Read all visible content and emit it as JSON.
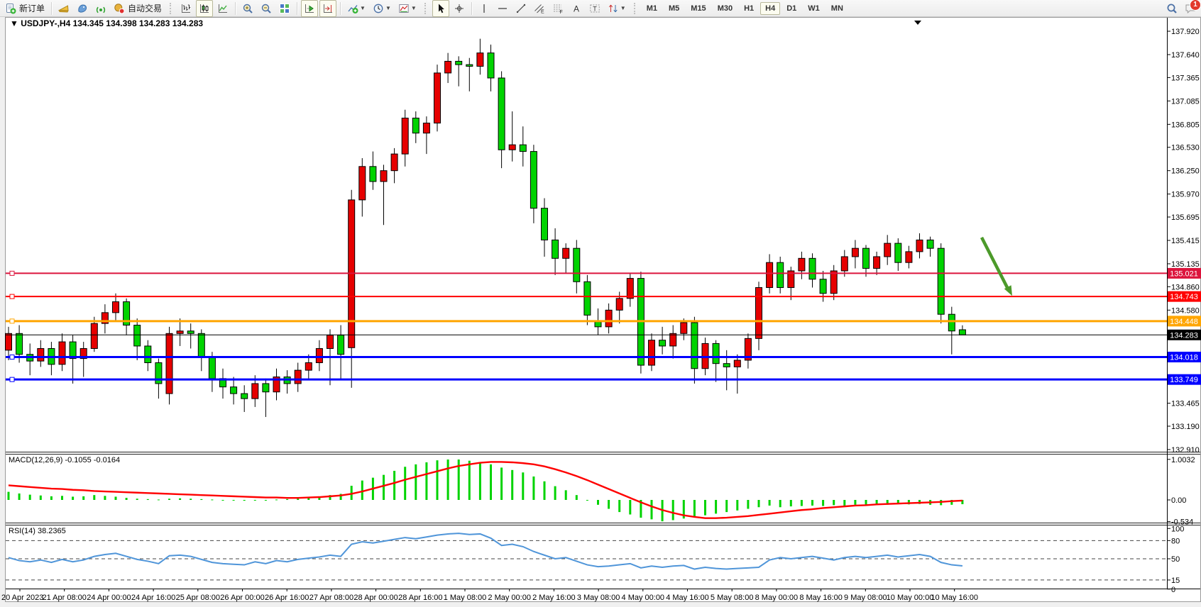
{
  "toolbar": {
    "new_order_label": "新订单",
    "autotrade_label": "自动交易",
    "groups": [
      {
        "lead": "none",
        "items": [
          {
            "name": "new-order-button",
            "icon": "new-order",
            "label_key": "new_order_label"
          }
        ]
      },
      {
        "lead": "sep",
        "items": [
          {
            "name": "market-watch-button",
            "icon": "gold-wedge"
          },
          {
            "name": "data-window-button",
            "icon": "blue-bird"
          },
          {
            "name": "ea-signal-button",
            "icon": "signal"
          },
          {
            "name": "autotrading-button",
            "icon": "autotrade",
            "label_key": "autotrade_label"
          }
        ]
      },
      {
        "lead": "grip",
        "items": [
          {
            "name": "bar-chart-button",
            "icon": "bar-chart"
          },
          {
            "name": "candlestick-chart-button",
            "icon": "candlestick",
            "active": true
          },
          {
            "name": "line-chart-button",
            "icon": "line-chart"
          }
        ]
      },
      {
        "lead": "sep",
        "items": [
          {
            "name": "zoom-in-button",
            "icon": "zoom-in"
          },
          {
            "name": "zoom-out-button",
            "icon": "zoom-out"
          },
          {
            "name": "tile-windows-button",
            "icon": "tile-windows"
          }
        ]
      },
      {
        "lead": "sep",
        "items": [
          {
            "name": "auto-scroll-button",
            "icon": "auto-scroll",
            "active": true
          },
          {
            "name": "chart-shift-button",
            "icon": "chart-shift",
            "active": true
          }
        ]
      },
      {
        "lead": "sep",
        "items": [
          {
            "name": "indicators-button",
            "icon": "indicators",
            "dropdown": true
          },
          {
            "name": "periods-button",
            "icon": "clock",
            "dropdown": true
          },
          {
            "name": "templates-button",
            "icon": "template",
            "dropdown": true
          }
        ]
      },
      {
        "lead": "grip",
        "items": [
          {
            "name": "cursor-button",
            "icon": "cursor",
            "active": true
          },
          {
            "name": "crosshair-button",
            "icon": "crosshair"
          }
        ]
      },
      {
        "lead": "sep",
        "items": [
          {
            "name": "vertical-line-button",
            "icon": "vline"
          },
          {
            "name": "horizontal-line-button",
            "icon": "hline"
          },
          {
            "name": "trendline-button",
            "icon": "trendline"
          },
          {
            "name": "equidistant-channel-button",
            "icon": "channel"
          },
          {
            "name": "fibonacci-button",
            "icon": "fibonacci"
          },
          {
            "name": "text-button",
            "icon": "text-a"
          },
          {
            "name": "text-label-button",
            "icon": "text-label"
          },
          {
            "name": "arrows-button",
            "icon": "arrows",
            "dropdown": true
          }
        ]
      }
    ],
    "timeframes": [
      "M1",
      "M5",
      "M15",
      "M30",
      "H1",
      "H4",
      "D1",
      "W1",
      "MN"
    ],
    "active_timeframe": "H4",
    "notification_count": "1"
  },
  "chart": {
    "symbol_period": "USDJPY-,H4",
    "ohlc_text": "134.345 134.398 134.283 134.283",
    "macd_label": "MACD(12,26,9)",
    "macd_values_text": "-0.1055 -0.0164",
    "rsi_label": "RSI(14)",
    "rsi_value_text": "38.2365",
    "macd_axis": [
      "1.0032",
      "0.00",
      "-0.534"
    ],
    "rsi_axis": [
      "100",
      "80",
      "50",
      "15",
      "0"
    ]
  },
  "chart_data": [
    {
      "type": "candlestick",
      "title": "USDJPY-,H4",
      "timeframe": "H4",
      "ylim": [
        132.91,
        137.92
      ],
      "up_color": "#e60000",
      "down_color": "#00d300",
      "y_ticks": [
        "137.920",
        "137.640",
        "137.365",
        "137.085",
        "136.805",
        "136.530",
        "136.250",
        "135.970",
        "135.695",
        "135.415",
        "135.135",
        "134.860",
        "134.580",
        "133.465",
        "133.190",
        "132.910"
      ],
      "x_labels": [
        "20 Apr 2023",
        "21 Apr 08:00",
        "24 Apr 00:00",
        "24 Apr 16:00",
        "25 Apr 08:00",
        "26 Apr 00:00",
        "26 Apr 16:00",
        "27 Apr 08:00",
        "28 Apr 00:00",
        "28 Apr 16:00",
        "1 May 08:00",
        "2 May 00:00",
        "2 May 16:00",
        "3 May 08:00",
        "4 May 00:00",
        "4 May 16:00",
        "5 May 08:00",
        "8 May 00:00",
        "8 May 16:00",
        "9 May 08:00",
        "10 May 00:00",
        "10 May 16:00"
      ],
      "hlines": [
        {
          "price": 135.021,
          "label": "135.021",
          "color": "#dc143c",
          "lw": 2,
          "text_color": "#ffffff"
        },
        {
          "price": 134.743,
          "label": "134.743",
          "color": "#ff0000",
          "lw": 2,
          "text_color": "#ffffff"
        },
        {
          "price": 134.448,
          "label": "134.448",
          "color": "#ffa500",
          "lw": 3,
          "text_color": "#ffffff"
        },
        {
          "price": 134.018,
          "label": "134.018",
          "color": "#0000ff",
          "lw": 3,
          "text_color": "#ffffff"
        },
        {
          "price": 133.749,
          "label": "133.749",
          "color": "#0000ff",
          "lw": 3,
          "text_color": "#ffffff"
        }
      ],
      "current_price": {
        "price": 134.283,
        "label": "134.283",
        "color": "#000000",
        "text_color": "#ffffff"
      },
      "annotations": [
        {
          "type": "arrow",
          "name": "sell-signal-arrow",
          "color": "#4c9a2a",
          "from_price": 135.45,
          "to_price": 134.75
        }
      ],
      "candles": [
        [
          134.1,
          134.38,
          133.98,
          134.3
        ],
        [
          134.3,
          134.4,
          133.95,
          134.05
        ],
        [
          134.05,
          134.18,
          133.8,
          133.97
        ],
        [
          133.97,
          134.22,
          133.9,
          134.12
        ],
        [
          134.12,
          134.2,
          133.8,
          133.93
        ],
        [
          133.93,
          134.3,
          133.85,
          134.2
        ],
        [
          134.2,
          134.28,
          133.7,
          134.0
        ],
        [
          134.0,
          134.2,
          133.78,
          134.12
        ],
        [
          134.12,
          134.5,
          134.08,
          134.42
        ],
        [
          134.42,
          134.65,
          134.3,
          134.55
        ],
        [
          134.55,
          134.78,
          134.45,
          134.68
        ],
        [
          134.68,
          134.72,
          134.28,
          134.4
        ],
        [
          134.4,
          134.48,
          133.98,
          134.15
        ],
        [
          134.15,
          134.22,
          133.85,
          133.95
        ],
        [
          133.95,
          134.0,
          133.52,
          133.7
        ],
        [
          133.58,
          134.38,
          133.45,
          134.3
        ],
        [
          134.3,
          134.48,
          134.15,
          134.33
        ],
        [
          134.33,
          134.42,
          134.12,
          134.3
        ],
        [
          134.3,
          134.35,
          133.85,
          134.02
        ],
        [
          134.02,
          134.08,
          133.6,
          133.76
        ],
        [
          133.76,
          133.88,
          133.52,
          133.66
        ],
        [
          133.66,
          133.78,
          133.45,
          133.58
        ],
        [
          133.58,
          133.68,
          133.36,
          133.52
        ],
        [
          133.52,
          133.8,
          133.42,
          133.7
        ],
        [
          133.7,
          133.76,
          133.3,
          133.6
        ],
        [
          133.6,
          133.88,
          133.5,
          133.78
        ],
        [
          133.78,
          133.86,
          133.58,
          133.7
        ],
        [
          133.7,
          133.95,
          133.6,
          133.86
        ],
        [
          133.86,
          134.05,
          133.75,
          133.95
        ],
        [
          133.95,
          134.22,
          133.85,
          134.12
        ],
        [
          134.12,
          134.35,
          133.68,
          134.28
        ],
        [
          134.28,
          134.4,
          133.75,
          134.05
        ],
        [
          134.13,
          136.02,
          133.65,
          135.9
        ],
        [
          135.9,
          136.4,
          135.7,
          136.3
        ],
        [
          136.3,
          136.48,
          136.02,
          136.12
        ],
        [
          136.12,
          136.32,
          135.6,
          136.25
        ],
        [
          136.25,
          136.52,
          136.1,
          136.45
        ],
        [
          136.45,
          136.98,
          136.3,
          136.88
        ],
        [
          136.88,
          136.96,
          136.58,
          136.7
        ],
        [
          136.7,
          136.9,
          136.45,
          136.82
        ],
        [
          136.82,
          137.52,
          136.72,
          137.42
        ],
        [
          137.42,
          137.66,
          137.3,
          137.56
        ],
        [
          137.56,
          137.62,
          137.26,
          137.52
        ],
        [
          137.52,
          137.6,
          137.2,
          137.5
        ],
        [
          137.5,
          137.83,
          137.4,
          137.66
        ],
        [
          137.66,
          137.76,
          137.2,
          137.36
        ],
        [
          137.36,
          137.44,
          136.28,
          136.5
        ],
        [
          136.5,
          136.96,
          136.36,
          136.56
        ],
        [
          136.56,
          136.78,
          136.3,
          136.48
        ],
        [
          136.48,
          136.56,
          135.62,
          135.8
        ],
        [
          135.8,
          135.92,
          135.22,
          135.42
        ],
        [
          135.42,
          135.56,
          135.0,
          135.2
        ],
        [
          135.2,
          135.38,
          135.02,
          135.32
        ],
        [
          135.32,
          135.42,
          134.78,
          134.92
        ],
        [
          134.92,
          135.0,
          134.4,
          134.52
        ],
        [
          134.44,
          134.6,
          134.28,
          134.38
        ],
        [
          134.38,
          134.66,
          134.3,
          134.58
        ],
        [
          134.58,
          134.8,
          134.42,
          134.72
        ],
        [
          134.72,
          135.02,
          134.62,
          134.96
        ],
        [
          134.96,
          135.04,
          133.82,
          133.92
        ],
        [
          133.92,
          134.3,
          133.85,
          134.22
        ],
        [
          134.22,
          134.38,
          134.05,
          134.15
        ],
        [
          134.15,
          134.4,
          134.0,
          134.3
        ],
        [
          134.3,
          134.48,
          134.22,
          134.43
        ],
        [
          134.43,
          134.5,
          133.7,
          133.88
        ],
        [
          133.88,
          134.25,
          133.8,
          134.18
        ],
        [
          134.18,
          134.22,
          133.72,
          133.94
        ],
        [
          133.94,
          134.1,
          133.62,
          133.9
        ],
        [
          133.9,
          134.05,
          133.58,
          133.98
        ],
        [
          133.98,
          134.3,
          133.88,
          134.24
        ],
        [
          134.24,
          134.92,
          134.1,
          134.85
        ],
        [
          134.85,
          135.25,
          134.78,
          135.15
        ],
        [
          135.15,
          135.22,
          134.78,
          134.85
        ],
        [
          134.85,
          135.1,
          134.7,
          135.05
        ],
        [
          135.05,
          135.28,
          134.95,
          135.2
        ],
        [
          135.2,
          135.26,
          134.85,
          134.95
        ],
        [
          134.95,
          135.05,
          134.68,
          134.78
        ],
        [
          134.78,
          135.12,
          134.7,
          135.05
        ],
        [
          135.05,
          135.3,
          134.98,
          135.22
        ],
        [
          135.22,
          135.42,
          135.08,
          135.32
        ],
        [
          135.32,
          135.36,
          134.98,
          135.08
        ],
        [
          135.08,
          135.28,
          135.0,
          135.22
        ],
        [
          135.22,
          135.48,
          135.12,
          135.38
        ],
        [
          135.38,
          135.44,
          135.05,
          135.15
        ],
        [
          135.15,
          135.35,
          135.08,
          135.28
        ],
        [
          135.28,
          135.5,
          135.2,
          135.42
        ],
        [
          135.42,
          135.46,
          135.22,
          135.32
        ],
        [
          135.32,
          135.38,
          134.42,
          134.53
        ],
        [
          134.53,
          134.62,
          134.05,
          134.33
        ],
        [
          134.345,
          134.398,
          134.283,
          134.283
        ]
      ]
    },
    {
      "type": "bar",
      "name": "MACD(12,26,9) histogram",
      "color": "#00d300",
      "ylim": [
        -0.534,
        1.0032
      ],
      "values": [
        0.2,
        0.16,
        0.13,
        0.11,
        0.09,
        0.1,
        0.08,
        0.09,
        0.12,
        0.1,
        0.08,
        0.05,
        0.03,
        0.02,
        0.01,
        0.03,
        0.04,
        0.03,
        0.02,
        0.01,
        0.0,
        -0.01,
        -0.02,
        -0.01,
        0.0,
        0.01,
        0.02,
        0.03,
        0.05,
        0.08,
        0.12,
        0.15,
        0.35,
        0.48,
        0.55,
        0.62,
        0.72,
        0.82,
        0.88,
        0.93,
        0.98,
        1.0,
        1.0,
        0.97,
        0.92,
        0.88,
        0.8,
        0.74,
        0.68,
        0.58,
        0.46,
        0.34,
        0.24,
        0.12,
        0.0,
        -0.12,
        -0.22,
        -0.3,
        -0.36,
        -0.44,
        -0.48,
        -0.53,
        -0.5,
        -0.46,
        -0.42,
        -0.38,
        -0.34,
        -0.3,
        -0.26,
        -0.22,
        -0.18,
        -0.14,
        -0.18,
        -0.16,
        -0.15,
        -0.14,
        -0.15,
        -0.13,
        -0.14,
        -0.12,
        -0.13,
        -0.11,
        -0.12,
        -0.1,
        -0.11,
        -0.1,
        -0.12,
        -0.13,
        -0.12,
        -0.1055
      ]
    },
    {
      "type": "line",
      "name": "MACD signal",
      "color": "#ff0000",
      "values": [
        0.36,
        0.34,
        0.32,
        0.3,
        0.28,
        0.27,
        0.25,
        0.24,
        0.22,
        0.21,
        0.2,
        0.19,
        0.18,
        0.17,
        0.16,
        0.15,
        0.14,
        0.13,
        0.12,
        0.11,
        0.1,
        0.09,
        0.08,
        0.07,
        0.06,
        0.06,
        0.05,
        0.05,
        0.06,
        0.07,
        0.09,
        0.11,
        0.15,
        0.21,
        0.28,
        0.35,
        0.42,
        0.5,
        0.57,
        0.64,
        0.71,
        0.78,
        0.84,
        0.88,
        0.92,
        0.94,
        0.94,
        0.93,
        0.91,
        0.88,
        0.83,
        0.76,
        0.68,
        0.59,
        0.49,
        0.38,
        0.27,
        0.16,
        0.05,
        -0.06,
        -0.16,
        -0.25,
        -0.32,
        -0.38,
        -0.42,
        -0.45,
        -0.45,
        -0.44,
        -0.42,
        -0.4,
        -0.37,
        -0.34,
        -0.31,
        -0.28,
        -0.25,
        -0.23,
        -0.2,
        -0.18,
        -0.16,
        -0.14,
        -0.13,
        -0.11,
        -0.1,
        -0.09,
        -0.08,
        -0.07,
        -0.06,
        -0.05,
        -0.03,
        -0.0164
      ]
    },
    {
      "type": "line",
      "name": "RSI(14)",
      "color": "#4f95d9",
      "ylim": [
        0,
        100
      ],
      "levels": [
        80,
        50,
        15
      ],
      "values": [
        52,
        47,
        45,
        48,
        44,
        49,
        45,
        48,
        54,
        57,
        59,
        54,
        49,
        46,
        42,
        55,
        56,
        54,
        49,
        44,
        42,
        41,
        40,
        45,
        42,
        47,
        45,
        49,
        51,
        53,
        56,
        54,
        74,
        78,
        76,
        79,
        82,
        85,
        83,
        86,
        89,
        91,
        92,
        90,
        91,
        84,
        72,
        74,
        70,
        62,
        56,
        50,
        52,
        46,
        40,
        37,
        38,
        40,
        42,
        35,
        38,
        36,
        38,
        39,
        33,
        36,
        34,
        33,
        34,
        35,
        36,
        48,
        52,
        50,
        52,
        54,
        51,
        48,
        52,
        54,
        52,
        54,
        56,
        53,
        55,
        57,
        54,
        44,
        40,
        38.24
      ]
    }
  ]
}
